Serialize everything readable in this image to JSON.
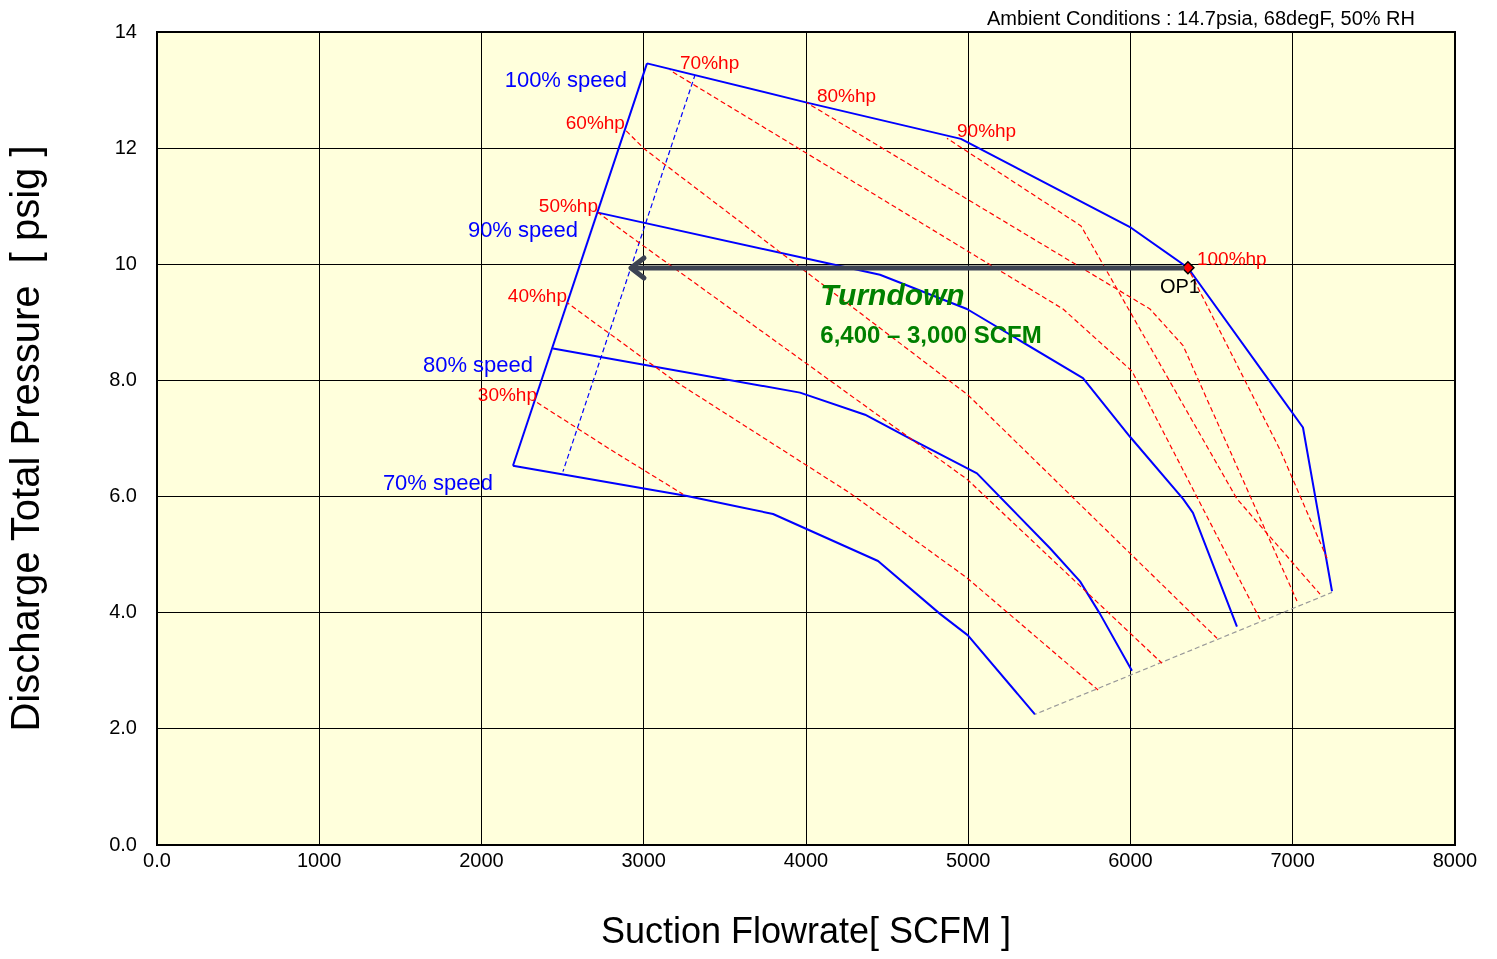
{
  "chart_data": {
    "type": "line",
    "title": "Ambient Conditions : 14.7psia, 68degF, 50% RH",
    "xlabel": "Suction Flowrate[ SCFM ]",
    "ylabel": "Discharge Total Pressure  [ psig ]",
    "xlim": [
      0,
      8000
    ],
    "ylim": [
      0,
      14
    ],
    "xticks": [
      {
        "value": 0,
        "label": "0.0"
      },
      1000,
      2000,
      3000,
      4000,
      5000,
      6000,
      7000,
      8000
    ],
    "yticks": [
      {
        "value": 0,
        "label": "0.0"
      },
      {
        "value": 2,
        "label": "2.0"
      },
      {
        "value": 4,
        "label": "4.0"
      },
      {
        "value": 6,
        "label": "6.0"
      },
      {
        "value": 8,
        "label": "8.0"
      },
      10,
      12,
      14
    ],
    "grid": true,
    "marker": "none",
    "series": [
      {
        "color": "#0000ff",
        "x": [
          2194,
          3020
        ],
        "values": [
          6.53,
          13.46
        ]
      },
      {
        "name": "100% speed",
        "color": "#0000ff",
        "x": [
          3020,
          4012,
          4955,
          6003,
          6354,
          7063,
          7242
        ],
        "values": [
          13.46,
          12.78,
          12.16,
          10.63,
          9.94,
          7.19,
          4.37
        ]
      },
      {
        "name": "90% speed",
        "color": "#0000ff",
        "x": [
          2718,
          4456,
          4992,
          5707,
          5997,
          6324,
          6385,
          6656
        ],
        "values": [
          10.89,
          9.82,
          9.23,
          8.04,
          7.03,
          5.96,
          5.72,
          3.76
        ]
      },
      {
        "name": "80% speed",
        "color": "#0000ff",
        "x": [
          2441,
          3963,
          4364,
          4659,
          5054,
          5504,
          5689,
          5812,
          6009
        ],
        "values": [
          8.55,
          7.79,
          7.41,
          6.97,
          6.4,
          5.11,
          4.54,
          3.98,
          3.0
        ]
      },
      {
        "name": "70% speed",
        "color": "#0000ff",
        "x": [
          2194,
          3267,
          3797,
          4444,
          4826,
          4998,
          5411
        ],
        "values": [
          6.53,
          6.01,
          5.7,
          4.89,
          3.98,
          3.61,
          2.25
        ]
      },
      {
        "color": "#0000ff",
        "line_style": "dashed",
        "x": [
          2502,
          3316
        ],
        "values": [
          6.43,
          13.26
        ]
      },
      {
        "color": "#999999",
        "line_style": "dashed",
        "x": [
          5411,
          7242
        ],
        "values": [
          2.25,
          4.35
        ]
      },
      {
        "name": "30%hp",
        "color": "#ff0000",
        "line_style": "dashed",
        "x": [
          2342,
          2800,
          3242
        ],
        "values": [
          7.62,
          6.8,
          6.04
        ]
      },
      {
        "name": "40%hp",
        "color": "#ff0000",
        "line_style": "dashed",
        "x": [
          2527,
          3180,
          4271,
          4992,
          5800
        ],
        "values": [
          9.34,
          8.01,
          6.06,
          4.6,
          2.67
        ]
      },
      {
        "name": "50%hp",
        "color": "#ff0000",
        "line_style": "dashed",
        "x": [
          2718,
          2977,
          4271,
          4992,
          6194
        ],
        "values": [
          10.89,
          10.36,
          7.75,
          6.3,
          3.13
        ]
      },
      {
        "name": "60%hp",
        "color": "#ff0000",
        "line_style": "dashed",
        "x": [
          2884,
          3002,
          4998,
          6533
        ],
        "values": [
          12.32,
          11.99,
          7.75,
          3.56
        ]
      },
      {
        "name": "70%hp",
        "color": "#ff0000",
        "line_style": "dashed",
        "x": [
          3162,
          5584,
          6009,
          6798
        ],
        "values": [
          13.34,
          9.23,
          8.16,
          3.89
        ]
      },
      {
        "name": "80%hp",
        "color": "#ff0000",
        "line_style": "dashed",
        "x": [
          4006,
          6120,
          6324,
          7026
        ],
        "values": [
          12.78,
          9.23,
          8.6,
          4.2
        ]
      },
      {
        "name": "90%hp",
        "color": "#ff0000",
        "line_style": "dashed",
        "x": [
          4869,
          5695,
          6656,
          7168
        ],
        "values": [
          12.17,
          10.66,
          5.96,
          4.32
        ]
      },
      {
        "name": "100%hp",
        "color": "#ff0000",
        "line_style": "dashed",
        "x": [
          6348,
          6921,
          7211
        ],
        "values": [
          9.97,
          6.81,
          4.94
        ]
      },
      {
        "name": "OP1",
        "type": "scatter",
        "marker": "diamond",
        "color": "#ff0000",
        "x": [
          6354
        ],
        "values": [
          9.94
        ]
      }
    ],
    "annotations": [
      "Turndown",
      "6,400 – 3,000 SCFM"
    ]
  }
}
